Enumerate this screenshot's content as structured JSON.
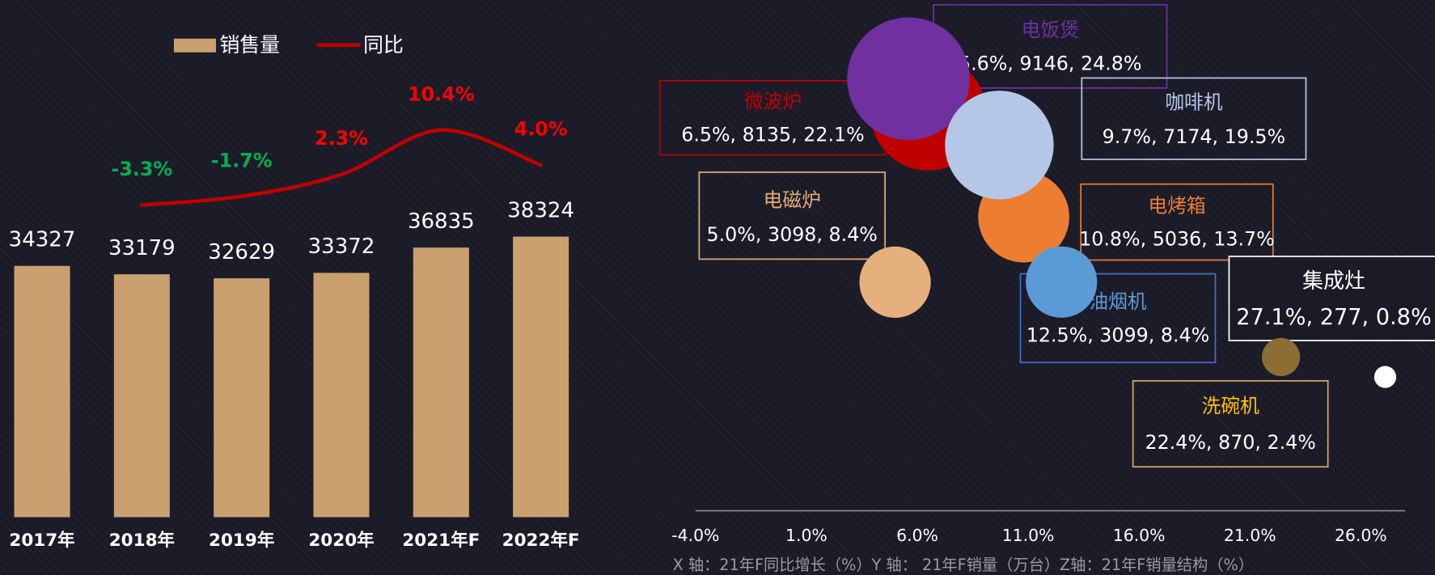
{
  "chart_data": [
    {
      "type": "bar-line",
      "categories": [
        "2017年",
        "2018年",
        "2019年",
        "2020年",
        "2021年F",
        "2022年F"
      ],
      "series": [
        {
          "name": "销售量",
          "type": "bar",
          "color": "#c9a06e",
          "values": [
            34327,
            33179,
            32629,
            33372,
            36835,
            38324
          ]
        },
        {
          "name": "同比",
          "type": "line",
          "color": "#c00000",
          "smooth": true,
          "positive_color": "#ff0000",
          "negative_color": "#00b050",
          "values": [
            null,
            -3.3,
            -1.7,
            2.3,
            10.4,
            4.0
          ],
          "value_labels": [
            null,
            "-3.3%",
            "-1.7%",
            "2.3%",
            "10.4%",
            "4.0%"
          ]
        }
      ],
      "legend": "top"
    },
    {
      "type": "bubble",
      "xlabel": "X 轴：21年F同比增长（%）Y 轴： 21年F销量（万台）Z轴：21年F销量结构（%）",
      "xlim": [
        -4,
        28
      ],
      "xticks": [
        {
          "value": -4,
          "label": "-4.0%"
        },
        {
          "value": 1,
          "label": "1.0%"
        },
        {
          "value": 6,
          "label": "6.0%"
        },
        {
          "value": 11,
          "label": "11.0%"
        },
        {
          "value": 16,
          "label": "16.0%"
        },
        {
          "value": 21,
          "label": "21.0%"
        },
        {
          "value": 26,
          "label": "26.0%"
        }
      ],
      "ylim": [
        -3700,
        10000
      ],
      "points": [
        {
          "name": "微波炉",
          "color": "#c00000",
          "x": 6.5,
          "y": 8135,
          "size": 22.1,
          "x_label": "6.5%",
          "size_label": "22.1%"
        },
        {
          "name": "电饭煲",
          "color": "#7030a0",
          "x": 5.6,
          "y": 9146,
          "size": 24.8,
          "x_label": "5.6%",
          "size_label": "24.8%"
        },
        {
          "name": "电烤箱",
          "color": "#ed7d31",
          "x": 10.8,
          "y": 5036,
          "size": 13.7,
          "x_label": "10.8%",
          "size_label": "13.7%"
        },
        {
          "name": "咖啡机",
          "color": "#b4c7e7",
          "x": 9.7,
          "y": 7174,
          "size": 19.5,
          "x_label": "9.7%",
          "size_label": "19.5%"
        },
        {
          "name": "油烟机",
          "color": "#5b9bd5",
          "x": 12.5,
          "y": 3099,
          "size": 8.4,
          "x_label": "12.5%",
          "size_label": "8.4%"
        },
        {
          "name": "电磁炉",
          "color": "#e2ae7a",
          "x": 5.0,
          "y": 3098,
          "size": 8.4,
          "x_label": "5.0%",
          "size_label": "8.4%"
        },
        {
          "name": "洗碗机",
          "color": "#ffc000",
          "x": 22.4,
          "y": 870,
          "size": 2.4,
          "x_label": "22.4%",
          "size_label": "2.4%"
        },
        {
          "name": "集成灶",
          "color": "#ffffff",
          "x": 27.1,
          "y": 277,
          "size": 0.8,
          "x_label": "27.1%",
          "size_label": "0.8%"
        }
      ]
    }
  ]
}
